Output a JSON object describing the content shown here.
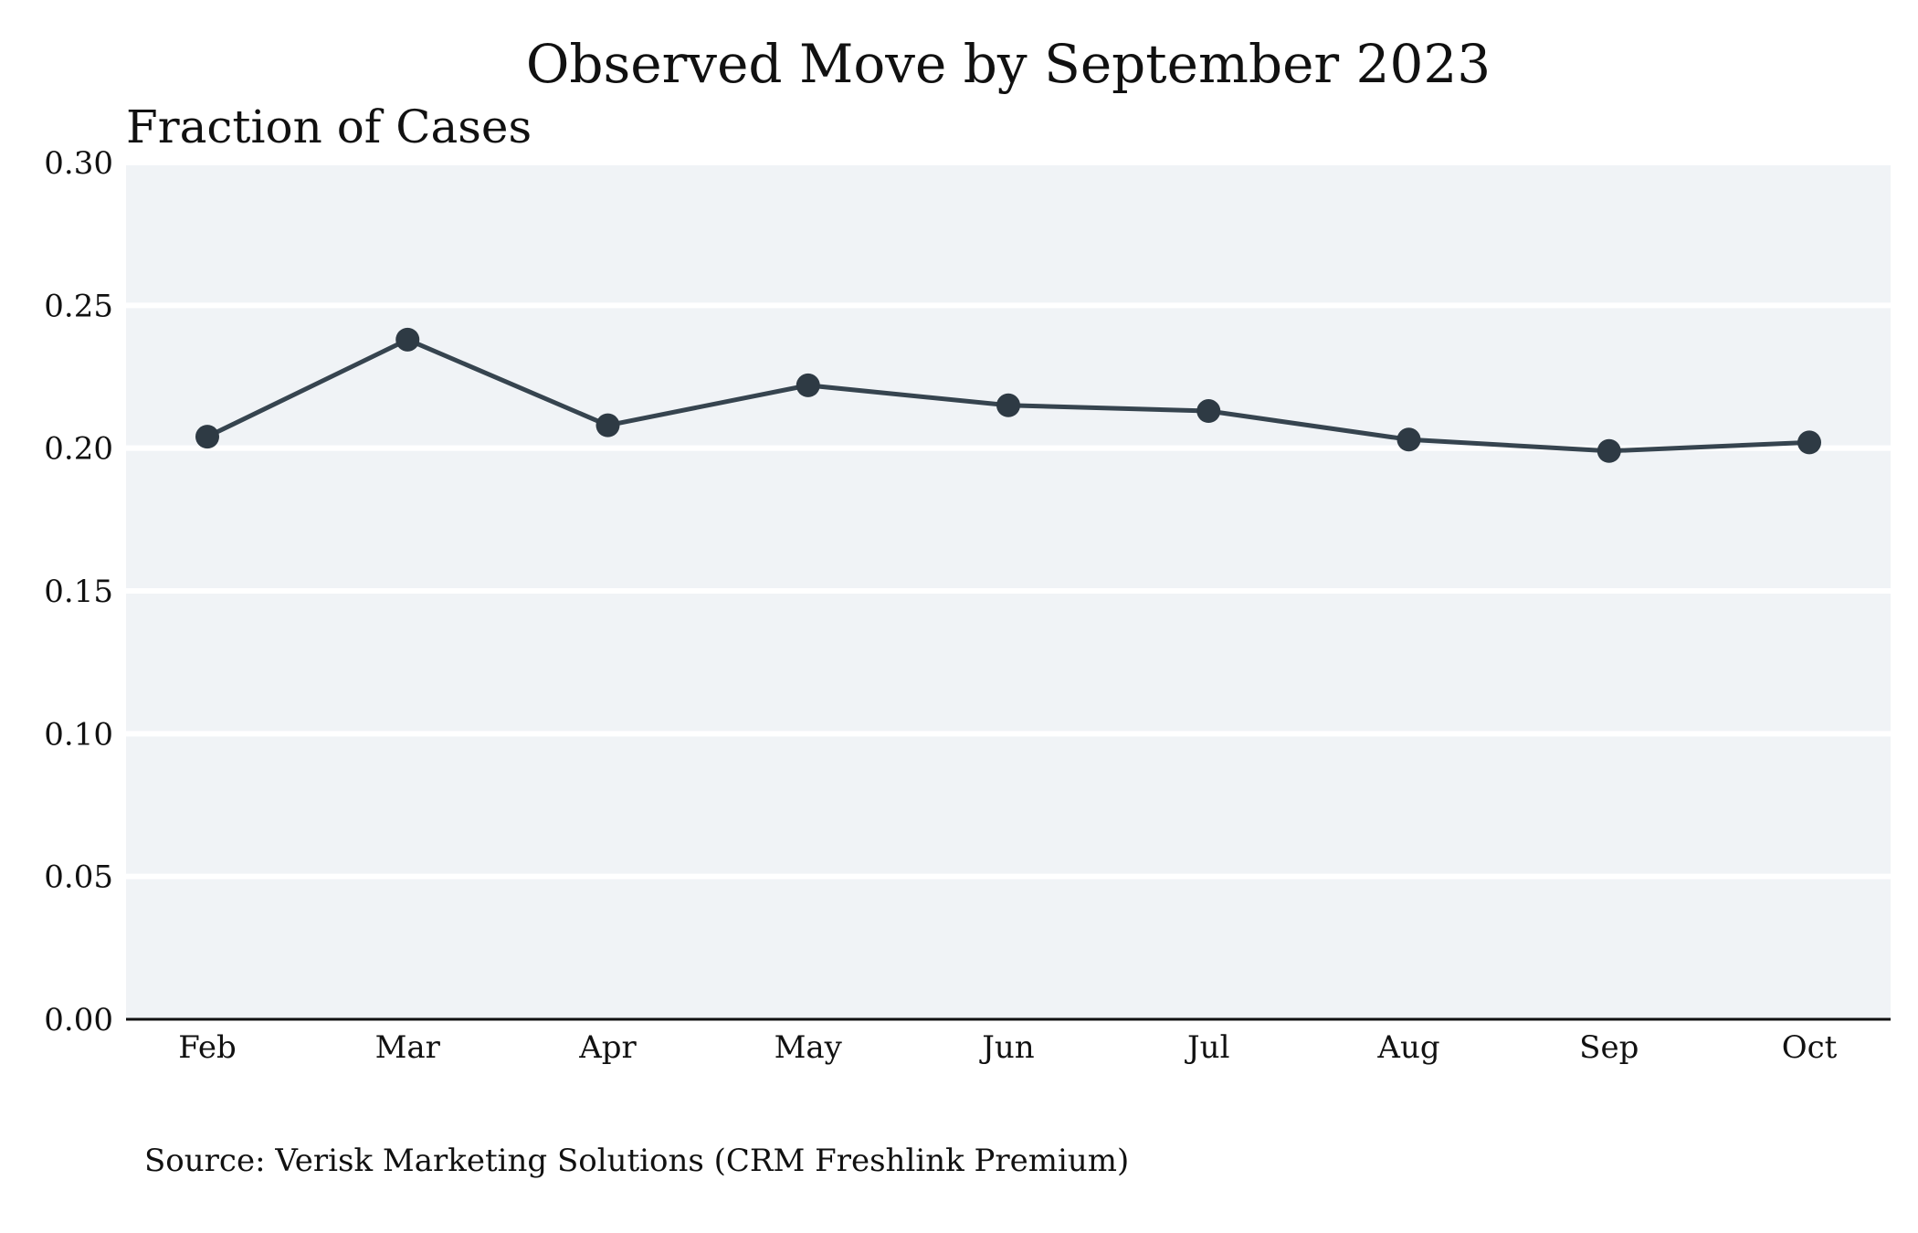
{
  "chart_data": {
    "type": "line",
    "title": "Observed Move by September 2023",
    "xlabel": "",
    "ylabel": "Fraction of Cases",
    "categories": [
      "Feb",
      "Mar",
      "Apr",
      "May",
      "Jun",
      "Jul",
      "Aug",
      "Sep",
      "Oct"
    ],
    "series": [
      {
        "name": "Observed Move",
        "values": [
          0.204,
          0.238,
          0.208,
          0.222,
          0.215,
          0.213,
          0.203,
          0.199,
          0.202
        ]
      }
    ],
    "ylim": [
      0,
      0.3
    ],
    "yticks": [
      "0.00",
      "0.05",
      "0.10",
      "0.15",
      "0.20",
      "0.25",
      "0.30"
    ],
    "ytick_values": [
      0,
      0.05,
      0.1,
      0.15,
      0.2,
      0.25,
      0.3
    ],
    "grid": true,
    "legend": "none",
    "source": "Source: Verisk Marketing Solutions (CRM Freshlink Premium)",
    "colors": {
      "line": "#36444f",
      "marker": "#2e3a44",
      "plot_background": "#f0f3f6",
      "gridline": "#ffffff",
      "axis": "#111111"
    }
  }
}
